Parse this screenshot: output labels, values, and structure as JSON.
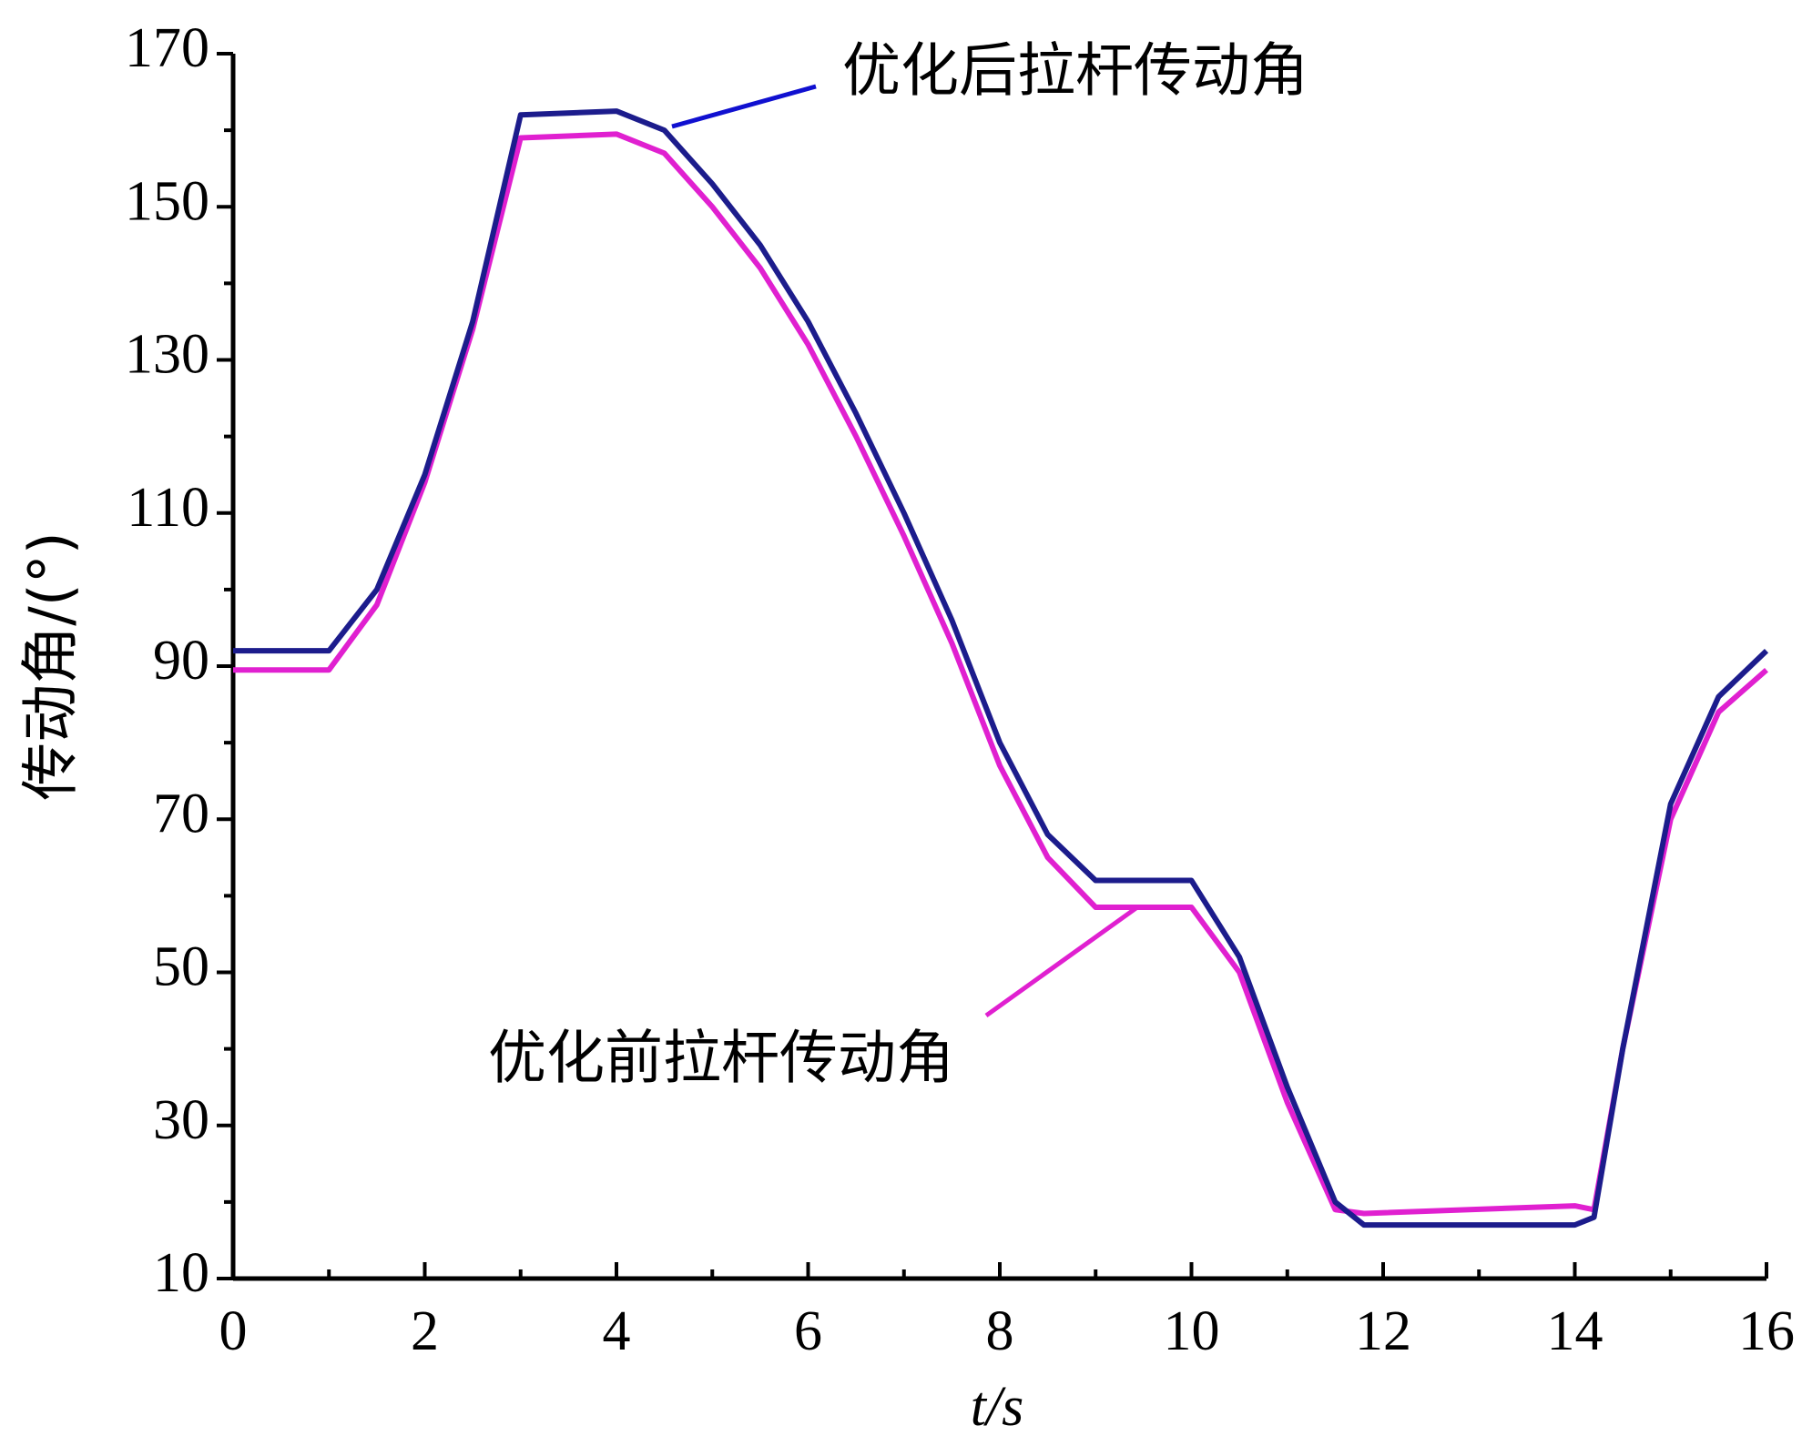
{
  "chart_data": {
    "type": "line",
    "x_label": "t/s",
    "y_label": "传动角/(°)",
    "annotations": [
      "优化后拉杆传动角",
      "优化前拉杆传动角"
    ],
    "x": [
      0,
      1,
      1.5,
      2,
      2.5,
      3,
      4,
      4.5,
      5,
      5.5,
      6,
      6.5,
      7,
      7.5,
      8,
      8.5,
      9,
      10,
      10.5,
      11,
      11.5,
      11.8,
      14,
      14.2,
      14.5,
      15,
      15.5,
      16
    ],
    "series": [
      {
        "name": "优化后拉杆传动角",
        "color": "#1c1c8c",
        "values": [
          92,
          92,
          100,
          115,
          135,
          162,
          162.5,
          160,
          153,
          145,
          135,
          123,
          110,
          96,
          80,
          68,
          62,
          62,
          52,
          35,
          20,
          17,
          17,
          18,
          40,
          72,
          86,
          92
        ]
      },
      {
        "name": "优化前拉杆传动角",
        "color": "#e020d0",
        "values": [
          89.5,
          89.5,
          98,
          114,
          134,
          159,
          159.5,
          157,
          150,
          142,
          132,
          120,
          107,
          93,
          77,
          65,
          58.5,
          58.5,
          50,
          33,
          19,
          18.5,
          19.5,
          19,
          40,
          70,
          84,
          89.5
        ]
      }
    ],
    "xlim": [
      0,
      16
    ],
    "xticks": [
      0,
      2,
      4,
      6,
      8,
      10,
      12,
      14,
      16
    ],
    "ylim": [
      10,
      170
    ],
    "yticks": [
      10,
      30,
      50,
      70,
      90,
      110,
      130,
      150,
      170
    ]
  }
}
